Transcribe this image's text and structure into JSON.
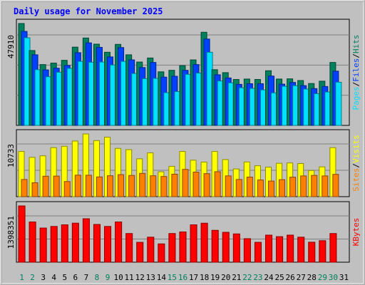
{
  "title": "Daily usage for November 2025",
  "colors": {
    "background": "#c0c0c0",
    "title_text": "#0000ff",
    "hits": "#00805c",
    "files": "#0040ff",
    "pages": "#00e0ff",
    "visits": "#ffff00",
    "sites": "#ff8000",
    "kbytes": "#ff0000",
    "weekend_label": "#00805c",
    "weekday_label": "#000000",
    "divider": "#808080"
  },
  "chart_data": [
    {
      "type": "bar",
      "name": "hits-files-pages",
      "x": [
        1,
        2,
        3,
        4,
        5,
        6,
        7,
        8,
        9,
        10,
        11,
        12,
        13,
        14,
        15,
        16,
        17,
        18,
        19,
        20,
        21,
        22,
        23,
        24,
        25,
        26,
        27,
        28,
        29,
        30,
        31
      ],
      "max_label": "47910",
      "legend": [
        "Pages",
        "Files",
        "Hits"
      ],
      "legend_separator": "/",
      "ylim": [
        0,
        47910
      ],
      "series": [
        {
          "name": "Hits",
          "color": "#00805c",
          "values": [
            47910,
            35200,
            28600,
            29300,
            30600,
            36800,
            41100,
            38200,
            34400,
            38100,
            33200,
            29800,
            31700,
            25200,
            25900,
            28100,
            30800,
            43800,
            26200,
            24800,
            21600,
            21800,
            21600,
            25700,
            21800,
            21900,
            21100,
            19700,
            20800,
            29600,
            null
          ]
        },
        {
          "name": "Files",
          "color": "#0040ff",
          "values": [
            44200,
            33200,
            26100,
            26900,
            28200,
            34200,
            38800,
            36700,
            32200,
            36600,
            30800,
            27200,
            29600,
            22700,
            23100,
            25900,
            28600,
            40600,
            23800,
            22300,
            19300,
            19600,
            19600,
            23200,
            19400,
            20200,
            18700,
            17300,
            18300,
            25500,
            null
          ]
        },
        {
          "name": "Pages",
          "color": "#00e0ff",
          "values": [
            41200,
            26200,
            22900,
            25000,
            26800,
            30100,
            29700,
            29800,
            28400,
            30100,
            24400,
            22000,
            22100,
            15400,
            15900,
            24000,
            24600,
            34400,
            20900,
            20000,
            17700,
            17400,
            16700,
            15300,
            18400,
            18700,
            17100,
            14900,
            15700,
            20300,
            null
          ]
        }
      ]
    },
    {
      "type": "bar",
      "name": "visits-sites",
      "x": [
        1,
        2,
        3,
        4,
        5,
        6,
        7,
        8,
        9,
        10,
        11,
        12,
        13,
        14,
        15,
        16,
        17,
        18,
        19,
        20,
        21,
        22,
        23,
        24,
        25,
        26,
        27,
        28,
        29,
        30,
        31
      ],
      "max_label": "10733",
      "legend": [
        "Sites",
        "Visits"
      ],
      "legend_separator": "/",
      "ylim": [
        0,
        10733
      ],
      "series": [
        {
          "name": "Visits",
          "color": "#ffff00",
          "values": [
            7740,
            6730,
            6990,
            8390,
            8620,
            9520,
            10733,
            9600,
            10190,
            8260,
            8050,
            6480,
            7500,
            4260,
            5190,
            7740,
            6240,
            5920,
            7740,
            6350,
            4740,
            5940,
            5290,
            5060,
            5710,
            5770,
            5670,
            4480,
            5100,
            8390,
            null
          ]
        },
        {
          "name": "Sites",
          "color": "#ff8000",
          "values": [
            2940,
            2380,
            3500,
            3520,
            2590,
            3680,
            3670,
            3380,
            3580,
            3770,
            3630,
            3990,
            3580,
            3450,
            3850,
            4670,
            4200,
            3940,
            4270,
            3560,
            2940,
            3350,
            2860,
            2670,
            2910,
            3340,
            3550,
            3640,
            3550,
            3820,
            null
          ]
        }
      ]
    },
    {
      "type": "bar",
      "name": "kbytes",
      "x": [
        1,
        2,
        3,
        4,
        5,
        6,
        7,
        8,
        9,
        10,
        11,
        12,
        13,
        14,
        15,
        16,
        17,
        18,
        19,
        20,
        21,
        22,
        23,
        24,
        25,
        26,
        27,
        28,
        29,
        30,
        31
      ],
      "max_label": "1398351",
      "legend": [
        "KBytes"
      ],
      "ylim": [
        0,
        1398351
      ],
      "series": [
        {
          "name": "KBytes",
          "color": "#ff0000",
          "values": [
            1398351,
            1000000,
            849000,
            889000,
            929000,
            970000,
            1080000,
            938000,
            889000,
            1000000,
            713000,
            494000,
            622000,
            455000,
            713000,
            752000,
            929000,
            969000,
            792000,
            743000,
            703000,
            585000,
            494000,
            673000,
            635000,
            673000,
            622000,
            497000,
            535000,
            713000,
            null
          ]
        }
      ]
    }
  ],
  "weekend_days": [
    1,
    2,
    8,
    9,
    15,
    16,
    22,
    23,
    29,
    30
  ]
}
